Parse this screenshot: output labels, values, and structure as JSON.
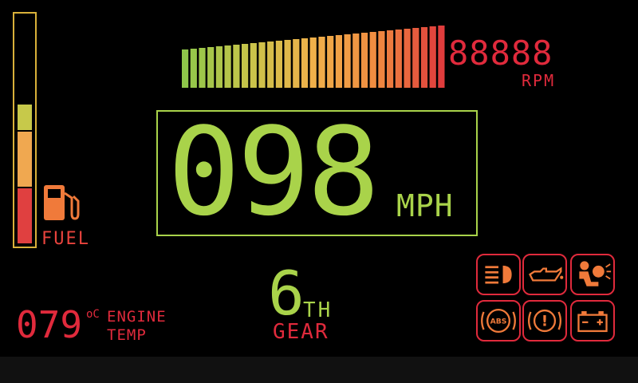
{
  "fuel": {
    "label": "FUEL",
    "level": 0.62,
    "colors": [
      "#e04040",
      "#f0a850",
      "#c7c94a",
      "#8fc74a"
    ]
  },
  "rpm": {
    "digits": "88888",
    "label": "RPM",
    "bar_count": 31,
    "level": 1.0,
    "gradient": [
      "#8fc74a",
      "#c8c44a",
      "#f0b04a",
      "#f08a40",
      "#e03c3c"
    ]
  },
  "speed": {
    "value": "098",
    "unit": "MPH"
  },
  "gear": {
    "number": "6",
    "suffix": "TH",
    "label": "GEAR"
  },
  "engine_temp": {
    "value": "079",
    "unit": "oC",
    "label_line1": "ENGINE",
    "label_line2": "TEMP"
  },
  "warning_lights": [
    {
      "name": "headlight-icon"
    },
    {
      "name": "oil-pressure-icon"
    },
    {
      "name": "airbag-icon"
    },
    {
      "name": "abs-icon",
      "text": "ABS"
    },
    {
      "name": "brake-warning-icon",
      "text": "!"
    },
    {
      "name": "battery-icon"
    }
  ],
  "colors": {
    "green": "#a9d34a",
    "red": "#e02a3c",
    "orange": "#f07a3a",
    "amber": "#d9b13a"
  }
}
